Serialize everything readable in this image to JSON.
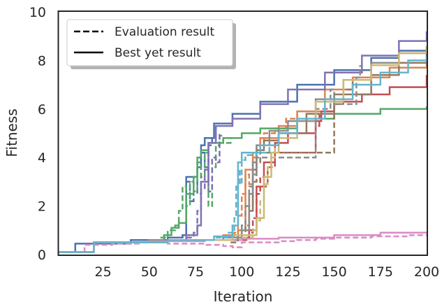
{
  "chart_data": {
    "type": "line",
    "xlabel": "Iteration",
    "ylabel": "Fitness",
    "xlim": [
      1,
      200
    ],
    "ylim": [
      0,
      10
    ],
    "xticks": [
      25,
      50,
      75,
      100,
      125,
      150,
      175,
      200
    ],
    "yticks": [
      0,
      2,
      4,
      6,
      8,
      10
    ],
    "grid": false,
    "legend": {
      "placement": "top-left",
      "entries": [
        {
          "label": "Evaluation result",
          "style": "dashed"
        },
        {
          "label": "Best yet result",
          "style": "solid"
        }
      ]
    },
    "series": [
      {
        "color": "#4c72b0",
        "best": [
          [
            1,
            0.1
          ],
          [
            10,
            0.45
          ],
          [
            40,
            0.6
          ],
          [
            60,
            0.7
          ],
          [
            68,
            0.8
          ],
          [
            70,
            3.2
          ],
          [
            74,
            3.2
          ],
          [
            76,
            3.6
          ],
          [
            78,
            4.5
          ],
          [
            80,
            4.8
          ],
          [
            85,
            5.4
          ],
          [
            95,
            5.8
          ],
          [
            110,
            6.3
          ],
          [
            130,
            7.0
          ],
          [
            150,
            7.6
          ],
          [
            170,
            8.1
          ],
          [
            185,
            8.4
          ],
          [
            200,
            8.6
          ]
        ],
        "eval": [
          [
            60,
            0.6
          ],
          [
            68,
            0.8
          ],
          [
            70,
            3.0
          ],
          [
            72,
            2.2
          ],
          [
            74,
            3.2
          ],
          [
            76,
            2.5
          ],
          [
            78,
            4.2
          ],
          [
            80,
            3.6
          ],
          [
            82,
            4.5
          ],
          [
            84,
            4.8
          ],
          [
            86,
            5.3
          ]
        ]
      },
      {
        "color": "#dd8452",
        "best": [
          [
            1,
            0.1
          ],
          [
            20,
            0.5
          ],
          [
            60,
            0.6
          ],
          [
            90,
            0.8
          ],
          [
            98,
            1.0
          ],
          [
            102,
            3.5
          ],
          [
            106,
            4.2
          ],
          [
            110,
            4.8
          ],
          [
            120,
            5.3
          ],
          [
            130,
            5.9
          ],
          [
            145,
            6.8
          ],
          [
            160,
            7.3
          ],
          [
            180,
            7.7
          ],
          [
            200,
            7.9
          ]
        ],
        "eval": [
          [
            92,
            0.7
          ],
          [
            96,
            0.9
          ],
          [
            98,
            1.6
          ],
          [
            100,
            2.5
          ],
          [
            102,
            3.3
          ],
          [
            104,
            2.9
          ],
          [
            106,
            4.0
          ],
          [
            108,
            4.5
          ],
          [
            112,
            5.0
          ],
          [
            118,
            5.2
          ],
          [
            124,
            5.6
          ],
          [
            130,
            5.8
          ]
        ]
      },
      {
        "color": "#55a868",
        "best": [
          [
            1,
            0.1
          ],
          [
            20,
            0.5
          ],
          [
            50,
            0.6
          ],
          [
            58,
            0.8
          ],
          [
            62,
            1.1
          ],
          [
            66,
            1.3
          ],
          [
            70,
            2.5
          ],
          [
            74,
            3.2
          ],
          [
            76,
            4.0
          ],
          [
            78,
            4.3
          ],
          [
            82,
            4.6
          ],
          [
            90,
            4.8
          ],
          [
            100,
            5.0
          ],
          [
            110,
            5.2
          ],
          [
            130,
            5.6
          ],
          [
            150,
            5.8
          ],
          [
            175,
            6.0
          ],
          [
            200,
            6.1
          ]
        ],
        "eval": [
          [
            56,
            0.7
          ],
          [
            60,
            1.0
          ],
          [
            64,
            1.2
          ],
          [
            66,
            1.8
          ],
          [
            68,
            2.8
          ],
          [
            70,
            2.0
          ],
          [
            72,
            3.0
          ],
          [
            74,
            2.6
          ],
          [
            76,
            3.8
          ],
          [
            78,
            3.2
          ],
          [
            80,
            4.2
          ],
          [
            82,
            2.0
          ],
          [
            84,
            3.6
          ],
          [
            86,
            4.5
          ],
          [
            88,
            4.9
          ],
          [
            90,
            4.6
          ],
          [
            94,
            4.8
          ]
        ]
      },
      {
        "color": "#c44e52",
        "best": [
          [
            1,
            0.1
          ],
          [
            20,
            0.5
          ],
          [
            60,
            0.6
          ],
          [
            100,
            0.7
          ],
          [
            104,
            1.0
          ],
          [
            108,
            2.8
          ],
          [
            112,
            3.8
          ],
          [
            118,
            4.6
          ],
          [
            125,
            5.0
          ],
          [
            140,
            5.5
          ],
          [
            143,
            5.9
          ],
          [
            150,
            6.3
          ],
          [
            165,
            6.6
          ],
          [
            180,
            6.9
          ],
          [
            200,
            7.4
          ]
        ],
        "eval": [
          [
            100,
            0.6
          ],
          [
            104,
            0.9
          ],
          [
            106,
            1.5
          ],
          [
            108,
            2.5
          ],
          [
            110,
            3.2
          ],
          [
            112,
            2.8
          ],
          [
            114,
            3.6
          ],
          [
            118,
            4.2
          ],
          [
            140,
            5.3
          ],
          [
            142,
            5.8
          ],
          [
            143,
            5.5
          ]
        ]
      },
      {
        "color": "#8172b3",
        "best": [
          [
            1,
            0.1
          ],
          [
            20,
            0.5
          ],
          [
            60,
            0.6
          ],
          [
            70,
            0.8
          ],
          [
            76,
            1.2
          ],
          [
            78,
            3.0
          ],
          [
            82,
            4.6
          ],
          [
            86,
            5.3
          ],
          [
            95,
            5.6
          ],
          [
            110,
            6.2
          ],
          [
            125,
            6.8
          ],
          [
            145,
            7.5
          ],
          [
            165,
            8.2
          ],
          [
            185,
            8.8
          ],
          [
            200,
            9.2
          ]
        ],
        "eval": [
          [
            70,
            0.7
          ],
          [
            74,
            0.9
          ],
          [
            76,
            1.8
          ],
          [
            78,
            2.7
          ],
          [
            80,
            3.5
          ],
          [
            82,
            2.6
          ],
          [
            84,
            4.0
          ],
          [
            86,
            3.8
          ],
          [
            88,
            5.0
          ]
        ]
      },
      {
        "color": "#937860",
        "best": [
          [
            1,
            0.1
          ],
          [
            20,
            0.5
          ],
          [
            60,
            0.6
          ],
          [
            90,
            0.7
          ],
          [
            100,
            1.0
          ],
          [
            104,
            1.8
          ],
          [
            106,
            3.5
          ],
          [
            108,
            4.3
          ],
          [
            112,
            4.7
          ],
          [
            120,
            5.0
          ],
          [
            135,
            5.8
          ],
          [
            150,
            6.6
          ],
          [
            170,
            7.4
          ],
          [
            185,
            7.9
          ],
          [
            200,
            8.3
          ]
        ],
        "eval": [
          [
            94,
            0.5
          ],
          [
            98,
            0.8
          ],
          [
            102,
            1.2
          ],
          [
            104,
            2.0
          ],
          [
            106,
            3.0
          ],
          [
            108,
            3.8
          ],
          [
            110,
            4.2
          ],
          [
            150,
            6.2
          ],
          [
            155,
            6.8
          ],
          [
            160,
            7.2
          ]
        ]
      },
      {
        "color": "#da8bc3",
        "best": [
          [
            1,
            0.1
          ],
          [
            20,
            0.5
          ],
          [
            50,
            0.55
          ],
          [
            80,
            0.6
          ],
          [
            100,
            0.65
          ],
          [
            120,
            0.7
          ],
          [
            150,
            0.8
          ],
          [
            175,
            0.9
          ],
          [
            200,
            0.95
          ]
        ],
        "eval": [
          [
            1,
            0.1
          ],
          [
            15,
            0.4
          ],
          [
            30,
            0.45
          ],
          [
            45,
            0.5
          ],
          [
            60,
            0.45
          ],
          [
            80,
            0.4
          ],
          [
            90,
            0.35
          ],
          [
            95,
            0.3
          ],
          [
            100,
            0.5
          ],
          [
            110,
            0.5
          ],
          [
            120,
            0.55
          ],
          [
            130,
            0.6
          ],
          [
            140,
            0.65
          ],
          [
            150,
            0.7
          ],
          [
            160,
            0.7
          ],
          [
            170,
            0.75
          ],
          [
            180,
            0.75
          ],
          [
            190,
            0.8
          ],
          [
            200,
            0.8
          ]
        ]
      },
      {
        "color": "#8c8c8c",
        "best": [
          [
            1,
            0.1
          ],
          [
            20,
            0.5
          ],
          [
            60,
            0.6
          ],
          [
            90,
            0.7
          ],
          [
            100,
            1.0
          ],
          [
            104,
            2.5
          ],
          [
            106,
            3.8
          ],
          [
            108,
            4.5
          ],
          [
            115,
            5.1
          ],
          [
            125,
            5.5
          ],
          [
            140,
            6.4
          ],
          [
            155,
            7.2
          ],
          [
            170,
            7.9
          ],
          [
            185,
            8.3
          ],
          [
            200,
            8.5
          ]
        ],
        "eval": [
          [
            92,
            0.6
          ],
          [
            98,
            0.8
          ],
          [
            100,
            1.2
          ],
          [
            102,
            2.0
          ],
          [
            104,
            2.8
          ],
          [
            106,
            3.3
          ],
          [
            108,
            4.0
          ],
          [
            140,
            6.0
          ],
          [
            148,
            6.8
          ],
          [
            150,
            6.2
          ],
          [
            162,
            7.3
          ],
          [
            164,
            7.8
          ]
        ]
      },
      {
        "color": "#ccb974",
        "best": [
          [
            1,
            0.1
          ],
          [
            20,
            0.5
          ],
          [
            60,
            0.6
          ],
          [
            95,
            0.8
          ],
          [
            108,
            1.5
          ],
          [
            112,
            3.2
          ],
          [
            116,
            4.2
          ],
          [
            120,
            4.8
          ],
          [
            130,
            5.6
          ],
          [
            140,
            6.3
          ],
          [
            155,
            7.2
          ],
          [
            170,
            7.8
          ],
          [
            185,
            8.3
          ],
          [
            200,
            8.6
          ]
        ],
        "eval": [
          [
            100,
            0.7
          ],
          [
            106,
            1.0
          ],
          [
            108,
            1.4
          ],
          [
            110,
            2.2
          ],
          [
            112,
            2.9
          ],
          [
            114,
            3.6
          ],
          [
            116,
            4.0
          ],
          [
            118,
            4.5
          ]
        ]
      },
      {
        "color": "#64b5cd",
        "best": [
          [
            1,
            0.1
          ],
          [
            20,
            0.5
          ],
          [
            60,
            0.6
          ],
          [
            85,
            0.75
          ],
          [
            95,
            1.2
          ],
          [
            98,
            3.8
          ],
          [
            100,
            4.2
          ],
          [
            110,
            4.5
          ],
          [
            120,
            5.0
          ],
          [
            130,
            5.6
          ],
          [
            145,
            6.4
          ],
          [
            160,
            7.0
          ],
          [
            175,
            7.5
          ],
          [
            190,
            8.0
          ],
          [
            200,
            8.2
          ]
        ],
        "eval": [
          [
            86,
            0.7
          ],
          [
            92,
            0.9
          ],
          [
            96,
            1.5
          ],
          [
            97,
            2.8
          ],
          [
            98,
            3.5
          ],
          [
            99,
            2.9
          ],
          [
            100,
            3.9
          ],
          [
            102,
            4.1
          ],
          [
            108,
            4.2
          ],
          [
            115,
            4.6
          ]
        ]
      }
    ]
  }
}
